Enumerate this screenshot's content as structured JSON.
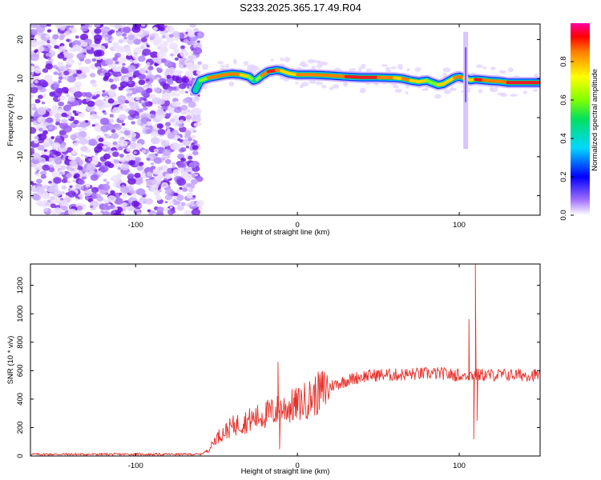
{
  "figure": {
    "title": "S233.2025.365.17.49.R04"
  },
  "colors": {
    "snr_line": "#e8302a",
    "background_noise": "#8a2be2",
    "frame": "#000000"
  },
  "chart_data": [
    {
      "type": "heatmap",
      "name": "spectrogram",
      "xlabel": "Height of straight line (km)",
      "ylabel": "Frequency (Hz)",
      "xlim": [
        -165,
        150
      ],
      "ylim": [
        -25,
        24
      ],
      "xticks": [
        -100,
        0,
        100
      ],
      "yticks": [
        -20,
        -10,
        0,
        10,
        20
      ],
      "grid": false,
      "noise_region_x": [
        -165,
        -63
      ],
      "signal_ridge": {
        "x": [
          -63,
          -60,
          -55,
          -50,
          -45,
          -40,
          -35,
          -30,
          -27,
          -25,
          -22,
          -18,
          -13,
          -10,
          -5,
          0,
          10,
          20,
          30,
          40,
          50,
          60,
          65,
          70,
          75,
          80,
          83,
          87,
          90,
          93,
          97,
          100,
          103,
          107,
          110,
          115,
          120,
          125,
          130,
          140,
          150
        ],
        "freq": [
          7,
          9.5,
          10.2,
          10.6,
          11.0,
          11.2,
          11.0,
          10.5,
          9.5,
          9.8,
          10.8,
          11.8,
          12.2,
          12.0,
          11.3,
          11.0,
          11.0,
          10.8,
          10.5,
          10.3,
          10.3,
          10.2,
          10.0,
          9.5,
          9.2,
          9.5,
          9.0,
          8.4,
          8.6,
          9.3,
          10.2,
          10.5,
          10.1,
          9.6,
          9.8,
          9.6,
          9.4,
          9.3,
          9.0,
          9.0,
          9.0
        ],
        "amplitude": [
          0.35,
          0.55,
          0.8,
          0.85,
          0.8,
          0.95,
          0.8,
          0.7,
          0.5,
          0.55,
          0.7,
          0.95,
          0.95,
          0.8,
          0.7,
          0.85,
          0.95,
          0.8,
          0.9,
          0.95,
          0.9,
          0.7,
          0.75,
          0.85,
          0.7,
          0.75,
          0.6,
          0.8,
          0.7,
          0.75,
          0.7,
          0.9,
          0.85,
          0.65,
          0.9,
          0.95,
          0.8,
          0.85,
          0.95,
          0.95,
          0.95
        ]
      },
      "spike": {
        "x": 104,
        "freq_range": [
          -8,
          22
        ]
      }
    },
    {
      "type": "colorbar",
      "name": "amplitude-colorbar",
      "label": "Normalized spectral amplitude",
      "range": [
        0.0,
        1.0
      ],
      "ticks": [
        "0.0",
        "0.2",
        "0.4",
        "0.6",
        "0.8"
      ],
      "tick_values": [
        0.0,
        0.2,
        0.4,
        0.6,
        0.8
      ]
    },
    {
      "type": "line",
      "name": "snr",
      "xlabel": "Height of straight line (km)",
      "ylabel": "SNR (10 * v/v)",
      "xlim": [
        -165,
        150
      ],
      "ylim": [
        0,
        1350
      ],
      "xticks": [
        -100,
        0,
        100
      ],
      "yticks": [
        0,
        200,
        400,
        600,
        800,
        1000,
        1200
      ],
      "grid": false,
      "envelope": {
        "x": [
          -165,
          -60,
          -55,
          -50,
          -40,
          -30,
          -20,
          -10,
          0,
          10,
          20,
          30,
          40,
          50,
          60,
          70,
          80,
          90,
          95,
          100,
          150
        ],
        "y": [
          12,
          12,
          40,
          130,
          210,
          250,
          290,
          330,
          360,
          420,
          490,
          530,
          560,
          570,
          570,
          575,
          580,
          580,
          570,
          570,
          570
        ]
      },
      "spikes": [
        {
          "x": -12,
          "y": 660
        },
        {
          "x": -11,
          "y": 50
        },
        {
          "x": 106,
          "y": 960
        },
        {
          "x": 109,
          "y": 120
        },
        {
          "x": 110,
          "y": 1350
        },
        {
          "x": 111,
          "y": 250
        }
      ]
    }
  ]
}
